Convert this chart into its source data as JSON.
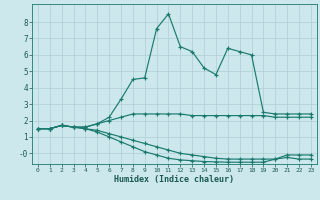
{
  "xlabel": "Humidex (Indice chaleur)",
  "bg_color": "#cce8ec",
  "grid_color": "#b0ced4",
  "line_color": "#1a7a6e",
  "xlim": [
    -0.5,
    23.5
  ],
  "ylim": [
    -0.65,
    9.1
  ],
  "xticks": [
    0,
    1,
    2,
    3,
    4,
    5,
    6,
    7,
    8,
    9,
    10,
    11,
    12,
    13,
    14,
    15,
    16,
    17,
    18,
    19,
    20,
    21,
    22,
    23
  ],
  "yticks": [
    0,
    1,
    2,
    3,
    4,
    5,
    6,
    7,
    8
  ],
  "ytick_labels": [
    "-0",
    "1",
    "2",
    "3",
    "4",
    "5",
    "6",
    "7",
    "8"
  ],
  "series": [
    {
      "x": [
        0,
        1,
        2,
        3,
        4,
        5,
        6,
        7,
        8,
        9,
        10,
        11,
        12,
        13,
        14,
        15,
        16,
        17,
        18,
        19,
        20,
        21,
        22,
        23
      ],
      "y": [
        1.5,
        1.5,
        1.7,
        1.6,
        1.6,
        1.8,
        2.2,
        3.3,
        4.5,
        4.6,
        7.6,
        8.5,
        6.5,
        6.2,
        5.2,
        4.8,
        6.4,
        6.2,
        6.0,
        2.5,
        2.4,
        2.4,
        2.4,
        2.4
      ]
    },
    {
      "x": [
        0,
        1,
        2,
        3,
        4,
        5,
        6,
        7,
        8,
        9,
        10,
        11,
        12,
        13,
        14,
        15,
        16,
        17,
        18,
        19,
        20,
        21,
        22,
        23
      ],
      "y": [
        1.5,
        1.5,
        1.7,
        1.6,
        1.6,
        1.8,
        2.0,
        2.2,
        2.4,
        2.4,
        2.4,
        2.4,
        2.4,
        2.3,
        2.3,
        2.3,
        2.3,
        2.3,
        2.3,
        2.3,
        2.2,
        2.2,
        2.2,
        2.2
      ]
    },
    {
      "x": [
        0,
        1,
        2,
        3,
        4,
        5,
        6,
        7,
        8,
        9,
        10,
        11,
        12,
        13,
        14,
        15,
        16,
        17,
        18,
        19,
        20,
        21,
        22,
        23
      ],
      "y": [
        1.5,
        1.5,
        1.7,
        1.6,
        1.5,
        1.4,
        1.2,
        1.0,
        0.8,
        0.6,
        0.4,
        0.2,
        0.0,
        -0.1,
        -0.2,
        -0.3,
        -0.35,
        -0.35,
        -0.35,
        -0.35,
        -0.35,
        -0.1,
        -0.1,
        -0.1
      ]
    },
    {
      "x": [
        0,
        1,
        2,
        3,
        4,
        5,
        6,
        7,
        8,
        9,
        10,
        11,
        12,
        13,
        14,
        15,
        16,
        17,
        18,
        19,
        20,
        21,
        22,
        23
      ],
      "y": [
        1.5,
        1.5,
        1.7,
        1.6,
        1.5,
        1.3,
        1.0,
        0.7,
        0.4,
        0.1,
        -0.1,
        -0.3,
        -0.4,
        -0.45,
        -0.5,
        -0.52,
        -0.54,
        -0.54,
        -0.54,
        -0.54,
        -0.35,
        -0.25,
        -0.35,
        -0.35
      ]
    }
  ]
}
